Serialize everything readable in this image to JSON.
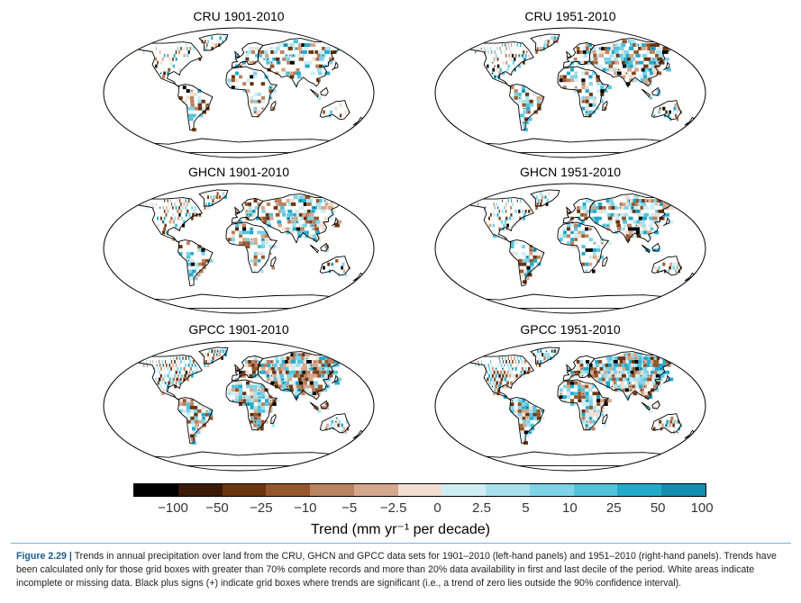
{
  "panels": [
    {
      "title": "CRU 1901-2010"
    },
    {
      "title": "CRU 1951-2010"
    },
    {
      "title": "GHCN 1901-2010"
    },
    {
      "title": "GHCN 1951-2010"
    },
    {
      "title": "GPCC 1901-2010"
    },
    {
      "title": "GPCC 1951-2010"
    }
  ],
  "colorbar": {
    "colors": [
      "#000000",
      "#3b1a08",
      "#6b3512",
      "#96572b",
      "#b98261",
      "#d3a88d",
      "#f2ddd0",
      "#cfeef4",
      "#a7e1ec",
      "#7fd3e6",
      "#52c3dd",
      "#22aacb",
      "#138db0"
    ],
    "ticks": [
      "−100",
      "−50",
      "−25",
      "−10",
      "−5",
      "−2.5",
      "0",
      "2.5",
      "5",
      "10",
      "25",
      "50",
      "100"
    ],
    "label": "Trend (mm yr⁻¹ per decade)"
  },
  "caption": {
    "figure": "Figure 2.29 |",
    "text": " Trends in annual precipitation over land from the CRU, GHCN and GPCC data sets for 1901–2010 (left-hand panels) and 1951–2010 (right-hand panels). Trends have been calculated only for those grid boxes with greater than 70% complete records and more than 20% data availability in first and last decile of the period. White areas indicate incomplete or missing data. Black plus signs (+) indicate grid boxes where trends are significant (i.e., a trend of zero lies outside the 90% confidence interval)."
  }
}
